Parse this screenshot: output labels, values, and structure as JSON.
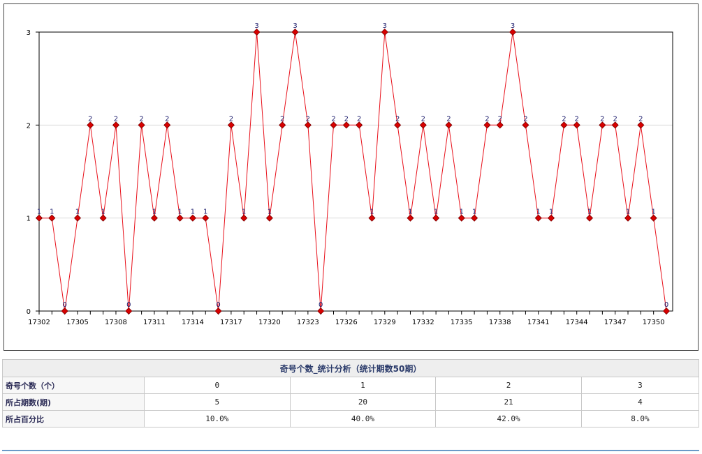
{
  "chart_data": {
    "type": "line",
    "x": [
      "17302",
      "17303",
      "17304",
      "17305",
      "17306",
      "17307",
      "17308",
      "17309",
      "17310",
      "17311",
      "17312",
      "17313",
      "17314",
      "17315",
      "17316",
      "17317",
      "17318",
      "17319",
      "17320",
      "17321",
      "17322",
      "17323",
      "17324",
      "17325",
      "17326",
      "17327",
      "17328",
      "17329",
      "17330",
      "17331",
      "17332",
      "17333",
      "17334",
      "17335",
      "17336",
      "17337",
      "17338",
      "17339",
      "17340",
      "17341",
      "17342",
      "17343",
      "17344",
      "17345",
      "17346",
      "17347",
      "17348",
      "17349",
      "17350",
      "17351"
    ],
    "x_tick_labels": [
      "17302",
      "17305",
      "17308",
      "17311",
      "17314",
      "17317",
      "17320",
      "17323",
      "17326",
      "17329",
      "17332",
      "17335",
      "17338",
      "17341",
      "17344",
      "17347",
      "17350"
    ],
    "series": [
      {
        "values": [
          1,
          1,
          0,
          1,
          2,
          1,
          2,
          0,
          2,
          1,
          2,
          1,
          1,
          1,
          0,
          2,
          1,
          3,
          1,
          2,
          3,
          2,
          0,
          2,
          2,
          2,
          1,
          3,
          2,
          1,
          2,
          1,
          2,
          1,
          1,
          2,
          2,
          3,
          2,
          1,
          1,
          2,
          2,
          1,
          2,
          2,
          1,
          2,
          1,
          0
        ]
      }
    ],
    "ylim": [
      0,
      3
    ],
    "y_ticks": [
      "0",
      "1",
      "2",
      "3"
    ],
    "grid": true,
    "colors": {
      "line": "#e8101a",
      "marker": "#d80000",
      "label": "#1a1a6b"
    }
  },
  "table": {
    "title": "奇号个数_统计分析（统计期数50期）",
    "rows": [
      {
        "label": "奇号个数（个）",
        "cells": [
          "0",
          "1",
          "2",
          "3"
        ]
      },
      {
        "label": "所占期数(期)",
        "cells": [
          "5",
          "20",
          "21",
          "4"
        ]
      },
      {
        "label": "所占百分比",
        "cells": [
          "10.0%",
          "40.0%",
          "42.0%",
          "8.0%"
        ]
      }
    ]
  }
}
